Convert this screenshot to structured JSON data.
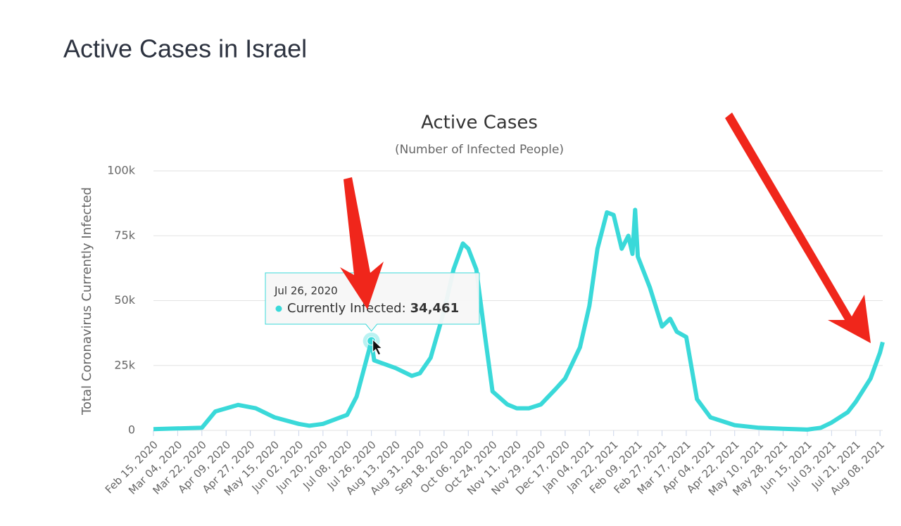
{
  "page_title": "Active Cases in Israel",
  "chart_data": {
    "type": "line",
    "title": "Active Cases",
    "subtitle": "(Number of Infected People)",
    "y_label": "Total Coronavirus Currently Infected",
    "color": "#3ad9d9",
    "grid": true,
    "x": [
      "Feb 15, 2020",
      "Mar 22, 2020",
      "Apr 01, 2020",
      "Apr 18, 2020",
      "May 01, 2020",
      "May 15, 2020",
      "Jun 02, 2020",
      "Jun 10, 2020",
      "Jun 20, 2020",
      "Jul 08, 2020",
      "Jul 15, 2020",
      "Jul 26, 2020",
      "Jul 28, 2020",
      "Aug 13, 2020",
      "Aug 25, 2020",
      "Aug 31, 2020",
      "Sep 08, 2020",
      "Sep 18, 2020",
      "Sep 25, 2020",
      "Oct 02, 2020",
      "Oct 06, 2020",
      "Oct 12, 2020",
      "Oct 18, 2020",
      "Oct 24, 2020",
      "Nov 04, 2020",
      "Nov 11, 2020",
      "Nov 20, 2020",
      "Nov 29, 2020",
      "Dec 10, 2020",
      "Dec 17, 2020",
      "Dec 28, 2020",
      "Jan 04, 2021",
      "Jan 10, 2021",
      "Jan 17, 2021",
      "Jan 22, 2021",
      "Jan 28, 2021",
      "Feb 02, 2021",
      "Feb 05, 2021",
      "Feb 07, 2021",
      "Feb 09, 2021",
      "Feb 18, 2021",
      "Feb 27, 2021",
      "Mar 05, 2021",
      "Mar 10, 2021",
      "Mar 17, 2021",
      "Mar 25, 2021",
      "Apr 04, 2021",
      "Apr 22, 2021",
      "May 10, 2021",
      "May 28, 2021",
      "Jun 15, 2021",
      "Jun 25, 2021",
      "Jul 03, 2021",
      "Jul 15, 2021",
      "Jul 21, 2021",
      "Aug 01, 2021",
      "Aug 08, 2021",
      "Aug 10, 2021"
    ],
    "values": [
      500,
      1000,
      7300,
      9800,
      8500,
      5000,
      2500,
      1800,
      2500,
      6000,
      13000,
      34461,
      27000,
      24000,
      21000,
      22000,
      28000,
      46000,
      62000,
      72000,
      70000,
      62000,
      38000,
      15000,
      10000,
      8500,
      8500,
      10000,
      16000,
      20000,
      32000,
      48000,
      70000,
      84000,
      83000,
      70000,
      75000,
      68000,
      85000,
      67000,
      55000,
      40000,
      43000,
      38000,
      36000,
      12000,
      5000,
      2000,
      1000,
      600,
      300,
      1000,
      3000,
      7000,
      11000,
      20000,
      30000,
      34000
    ],
    "xlim": [
      "Feb 15, 2020",
      "Aug 10, 2021"
    ],
    "xticks": [
      "Feb 15, 2020",
      "Mar 04, 2020",
      "Mar 22, 2020",
      "Apr 09, 2020",
      "Apr 27, 2020",
      "May 15, 2020",
      "Jun 02, 2020",
      "Jun 20, 2020",
      "Jul 08, 2020",
      "Jul 26, 2020",
      "Aug 13, 2020",
      "Aug 31, 2020",
      "Sep 18, 2020",
      "Oct 06, 2020",
      "Oct 24, 2020",
      "Nov 11, 2020",
      "Nov 29, 2020",
      "Dec 17, 2020",
      "Jan 04, 2021",
      "Jan 22, 2021",
      "Feb 09, 2021",
      "Feb 27, 2021",
      "Mar 17, 2021",
      "Apr 04, 2021",
      "Apr 22, 2021",
      "May 10, 2021",
      "May 28, 2021",
      "Jun 15, 2021",
      "Jul 03, 2021",
      "Jul 21, 2021",
      "Aug 08, 2021"
    ],
    "ylim": [
      0,
      100000
    ],
    "yticks": [
      0,
      {
        "value": 25000,
        "label": "25k"
      },
      {
        "value": 50000,
        "label": "50k"
      },
      {
        "value": 75000,
        "label": "75k"
      },
      {
        "value": 100000,
        "label": "100k"
      }
    ],
    "tooltip": {
      "date": "Jul 26, 2020",
      "label": "Currently Infected:",
      "value": 34461,
      "value_label": "34,461"
    }
  }
}
